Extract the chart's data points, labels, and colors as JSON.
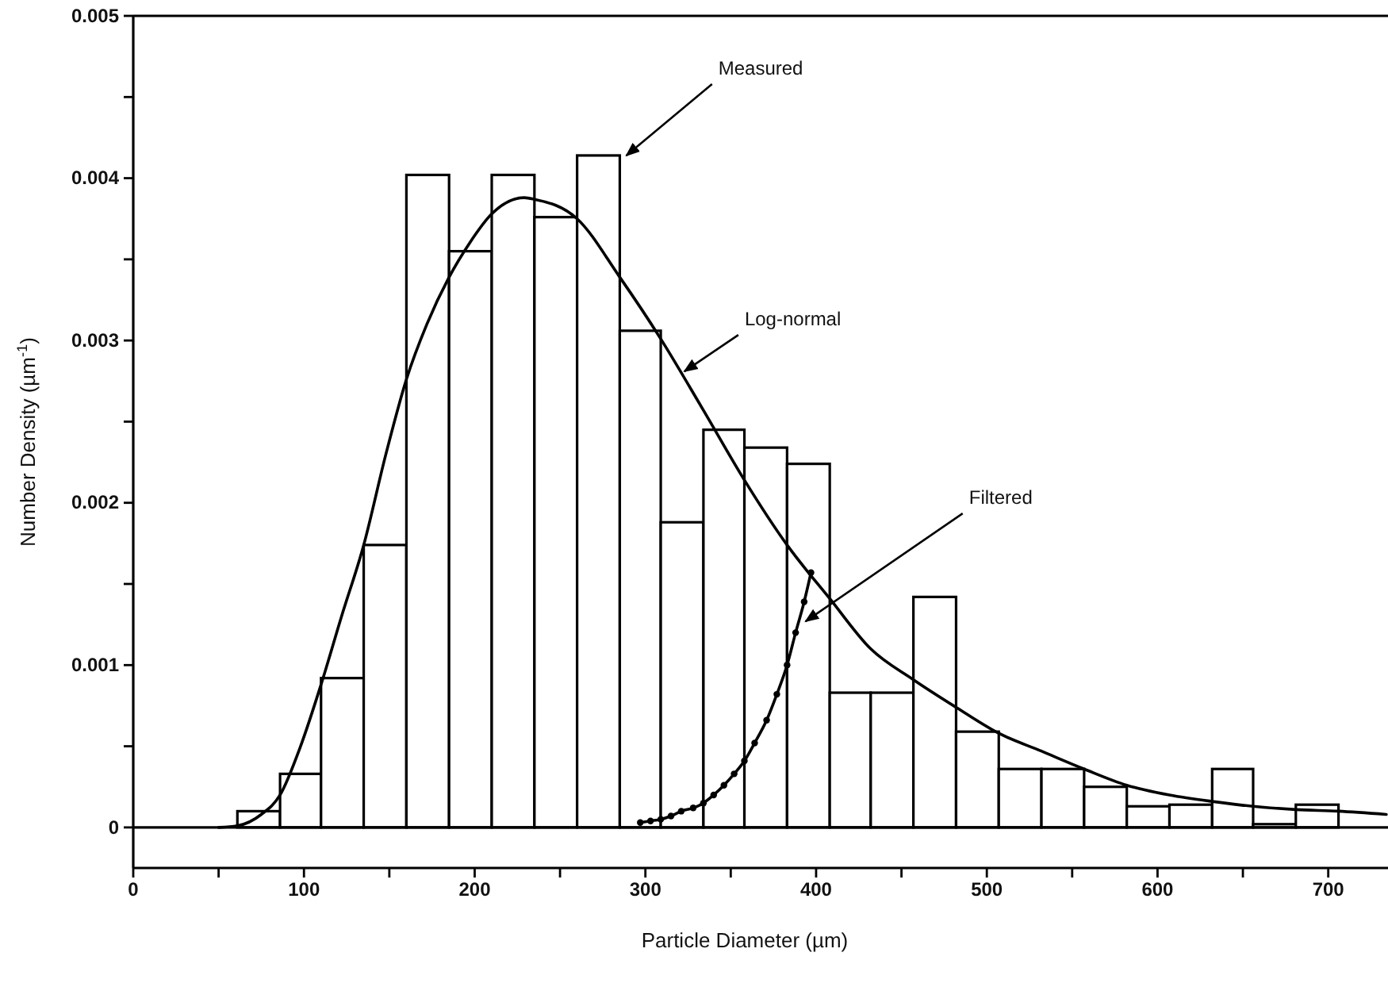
{
  "chart_data": {
    "type": "histogram",
    "xlabel": "Particle Diameter (µm)",
    "ylabel": "Number Density (µm$^{-1}$)",
    "bins": [
      61,
      86,
      110,
      135,
      160,
      185,
      210,
      235,
      260,
      285,
      309,
      334,
      358,
      383,
      408,
      432,
      457,
      482,
      507,
      532,
      557,
      582,
      607,
      632,
      656,
      681,
      706
    ],
    "values": [
      0.0001,
      0.00033,
      0.00092,
      0.00174,
      0.00402,
      0.00355,
      0.00402,
      0.00376,
      0.00414,
      0.00306,
      0.00188,
      0.00245,
      0.00234,
      0.00224,
      0.00083,
      0.00083,
      0.00142,
      0.00059,
      0.00036,
      0.00036,
      0.00025,
      0.00013,
      0.00014,
      0.00036,
      2e-05,
      0.00014
    ],
    "color": "#ffffff",
    "series": [
      {
        "type": "line",
        "color": "#000000",
        "marker": "none",
        "x": [
          50,
          61,
          75,
          86,
          98,
          110,
          122,
          135,
          148,
          160,
          172,
          185,
          197,
          210,
          229,
          235,
          260,
          285,
          309,
          334,
          358,
          383,
          408,
          432,
          457,
          482,
          507,
          532,
          557,
          582,
          607,
          632,
          656,
          681,
          706,
          734
        ],
        "values": [
          0,
          1e-05,
          8e-05,
          0.0002,
          0.0005,
          0.00088,
          0.0013,
          0.00174,
          0.0023,
          0.00276,
          0.0031,
          0.00339,
          0.0036,
          0.00378,
          0.00388,
          0.00387,
          0.00375,
          0.00339,
          0.00301,
          0.00257,
          0.00214,
          0.00174,
          0.00141,
          0.0011,
          0.00091,
          0.00074,
          0.00058,
          0.00047,
          0.00036,
          0.00026,
          0.0002,
          0.00016,
          0.00013,
          0.00011,
          0.0001,
          8e-05
        ]
      },
      {
        "type": "line",
        "color": "#000000",
        "marker": "circle",
        "x": [
          297,
          303,
          309,
          315,
          321,
          328,
          334,
          340,
          346,
          352,
          358,
          364,
          371,
          377,
          383,
          388,
          393,
          397
        ],
        "values": [
          3e-05,
          4e-05,
          5e-05,
          7e-05,
          0.0001,
          0.00012,
          0.00015,
          0.0002,
          0.00026,
          0.00033,
          0.00041,
          0.00052,
          0.00066,
          0.00082,
          0.001,
          0.0012,
          0.00139,
          0.00157
        ]
      }
    ],
    "xlim": [
      0,
      735
    ],
    "xticks": [
      0,
      {
        "value": 50,
        "label": null
      },
      100,
      {
        "value": 150,
        "label": null
      },
      200,
      {
        "value": 250,
        "label": null
      },
      300,
      {
        "value": 350,
        "label": null
      },
      400,
      {
        "value": 450,
        "label": null
      },
      500,
      {
        "value": 550,
        "label": null
      },
      600,
      {
        "value": 650,
        "label": null
      },
      700
    ],
    "ylim": [
      -0.00025,
      0.005
    ],
    "yticks": [
      0,
      {
        "value": 0.0005,
        "label": null
      },
      0.001,
      {
        "value": 0.0015,
        "label": null
      },
      0.002,
      {
        "value": 0.0025,
        "label": null
      },
      0.003,
      {
        "value": 0.0035,
        "label": null
      },
      0.004,
      {
        "value": 0.0045,
        "label": null
      },
      0.005
    ],
    "ref_lines": [
      {
        "axis": "y",
        "value": 0,
        "color": "#000000"
      }
    ],
    "annotations": [
      {
        "text": "Measured",
        "x": 287,
        "y": 0.00413
      },
      {
        "text": "Log-normal",
        "x": 321,
        "y": 0.0028
      },
      {
        "text": "Filtered",
        "x": 392,
        "y": 0.00126
      }
    ]
  }
}
